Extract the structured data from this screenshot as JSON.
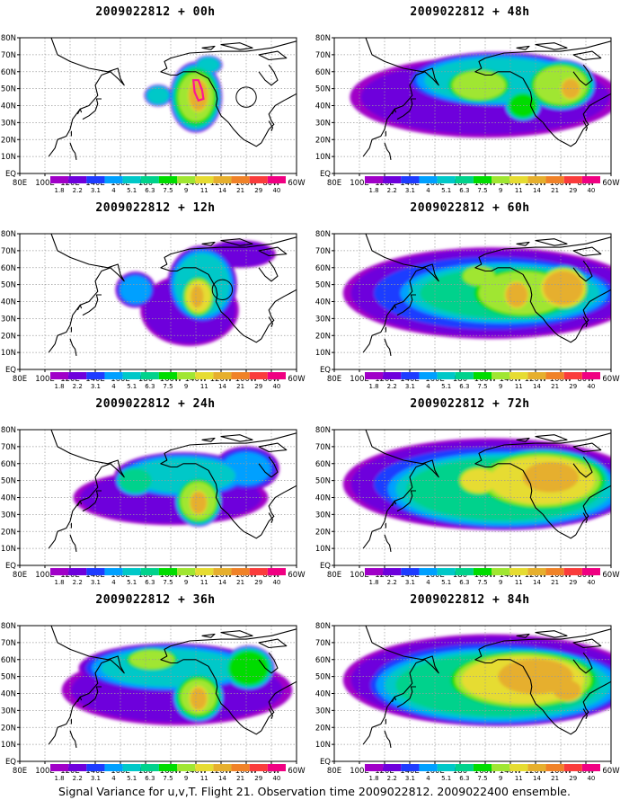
{
  "figure": {
    "caption": "Signal Variance for u,v,T. Flight 21. Observation time 2009022812. 2009022400 ensemble."
  },
  "colors": {
    "levels": [
      "#a000c8",
      "#6e00dc",
      "#1e3cff",
      "#00a0ff",
      "#00c8c8",
      "#00d28c",
      "#00dc00",
      "#a0e632",
      "#e6dc32",
      "#e6af2d",
      "#f08228",
      "#fa3c3c",
      "#f00082"
    ],
    "land_outline": "#000000",
    "grid": "#9a9a9a",
    "flight_track": "#ff1493"
  },
  "chart_data": {
    "type": "heatmap",
    "levels": [
      "1.8",
      "2.2",
      "3.1",
      "4",
      "5.1",
      "6.3",
      "7.5",
      "9",
      "11",
      "14",
      "21",
      "29",
      "40"
    ],
    "x_ticks": [
      "80E",
      "100E",
      "120E",
      "140E",
      "160E",
      "180",
      "160W",
      "140W",
      "120W",
      "100W",
      "80W",
      "60W"
    ],
    "y_ticks": [
      "EQ",
      "10N",
      "20N",
      "30N",
      "40N",
      "50N",
      "60N",
      "70N",
      "80N"
    ],
    "panels": [
      {
        "id": "00h",
        "title": "2009022812 + 00h",
        "lead_hours": 0
      },
      {
        "id": "48h",
        "title": "2009022812 + 48h",
        "lead_hours": 48
      },
      {
        "id": "12h",
        "title": "2009022812 + 12h",
        "lead_hours": 12
      },
      {
        "id": "60h",
        "title": "2009022812 + 60h",
        "lead_hours": 60
      },
      {
        "id": "24h",
        "title": "2009022812 + 24h",
        "lead_hours": 24
      },
      {
        "id": "72h",
        "title": "2009022812 + 72h",
        "lead_hours": 72
      },
      {
        "id": "36h",
        "title": "2009022812 + 36h",
        "lead_hours": 36
      },
      {
        "id": "84h",
        "title": "2009022812 + 84h",
        "lead_hours": 84
      }
    ],
    "blobs": {
      "00h": [
        {
          "lon": 220,
          "lat": 45,
          "rx": 22,
          "ry": 22,
          "v": 9
        },
        {
          "lon": 222,
          "lat": 46,
          "rx": 10,
          "ry": 12,
          "v": 17
        },
        {
          "lon": 190,
          "lat": 46,
          "rx": 12,
          "ry": 7,
          "v": 6
        },
        {
          "lon": 230,
          "lat": 64,
          "rx": 12,
          "ry": 6,
          "v": 6
        }
      ],
      "12h": [
        {
          "lon": 215,
          "lat": 35,
          "rx": 48,
          "ry": 26,
          "v": 2.8
        },
        {
          "lon": 225,
          "lat": 50,
          "rx": 30,
          "ry": 25,
          "v": 6
        },
        {
          "lon": 222,
          "lat": 43,
          "rx": 15,
          "ry": 14,
          "v": 11
        },
        {
          "lon": 221,
          "lat": 43,
          "rx": 7,
          "ry": 9,
          "v": 16
        },
        {
          "lon": 172,
          "lat": 47,
          "rx": 18,
          "ry": 12,
          "v": 4.3
        },
        {
          "lon": 255,
          "lat": 68,
          "rx": 35,
          "ry": 10,
          "v": 2.8
        }
      ],
      "24h": [
        {
          "lon": 200,
          "lat": 40,
          "rx": 95,
          "ry": 20,
          "v": 2.8
        },
        {
          "lon": 210,
          "lat": 53,
          "rx": 60,
          "ry": 15,
          "v": 5.5
        },
        {
          "lon": 222,
          "lat": 38,
          "rx": 20,
          "ry": 16,
          "v": 10
        },
        {
          "lon": 222,
          "lat": 37,
          "rx": 9,
          "ry": 9,
          "v": 16
        },
        {
          "lon": 172,
          "lat": 50,
          "rx": 18,
          "ry": 10,
          "v": 7
        },
        {
          "lon": 260,
          "lat": 57,
          "rx": 30,
          "ry": 15,
          "v": 4
        }
      ],
      "36h": [
        {
          "lon": 205,
          "lat": 42,
          "rx": 115,
          "ry": 26,
          "v": 2.6
        },
        {
          "lon": 200,
          "lat": 55,
          "rx": 80,
          "ry": 16,
          "v": 5.5
        },
        {
          "lon": 185,
          "lat": 60,
          "rx": 25,
          "ry": 8,
          "v": 10
        },
        {
          "lon": 222,
          "lat": 38,
          "rx": 22,
          "ry": 16,
          "v": 9
        },
        {
          "lon": 222,
          "lat": 37,
          "rx": 10,
          "ry": 10,
          "v": 14
        },
        {
          "lon": 262,
          "lat": 55,
          "rx": 22,
          "ry": 14,
          "v": 8.5
        }
      ],
      "48h": [
        {
          "lon": 200,
          "lat": 45,
          "rx": 135,
          "ry": 30,
          "v": 2.6
        },
        {
          "lon": 210,
          "lat": 55,
          "rx": 80,
          "ry": 18,
          "v": 6
        },
        {
          "lon": 195,
          "lat": 52,
          "rx": 30,
          "ry": 12,
          "v": 10
        },
        {
          "lon": 260,
          "lat": 52,
          "rx": 30,
          "ry": 16,
          "v": 10
        },
        {
          "lon": 268,
          "lat": 50,
          "rx": 10,
          "ry": 8,
          "v": 16
        },
        {
          "lon": 230,
          "lat": 40,
          "rx": 16,
          "ry": 10,
          "v": 8
        }
      ],
      "60h": [
        {
          "lon": 205,
          "lat": 45,
          "rx": 140,
          "ry": 32,
          "v": 3.2
        },
        {
          "lon": 215,
          "lat": 45,
          "rx": 100,
          "ry": 22,
          "v": 6.5
        },
        {
          "lon": 230,
          "lat": 45,
          "rx": 50,
          "ry": 18,
          "v": 10
        },
        {
          "lon": 225,
          "lat": 44,
          "rx": 12,
          "ry": 10,
          "v": 16
        },
        {
          "lon": 262,
          "lat": 48,
          "rx": 22,
          "ry": 14,
          "v": 16
        },
        {
          "lon": 195,
          "lat": 55,
          "rx": 18,
          "ry": 8,
          "v": 10
        }
      ],
      "72h": [
        {
          "lon": 205,
          "lat": 48,
          "rx": 140,
          "ry": 32,
          "v": 3.2
        },
        {
          "lon": 215,
          "lat": 45,
          "rx": 110,
          "ry": 26,
          "v": 7
        },
        {
          "lon": 245,
          "lat": 50,
          "rx": 60,
          "ry": 20,
          "v": 12
        },
        {
          "lon": 252,
          "lat": 52,
          "rx": 30,
          "ry": 12,
          "v": 17
        },
        {
          "lon": 195,
          "lat": 50,
          "rx": 20,
          "ry": 10,
          "v": 12
        }
      ],
      "84h": [
        {
          "lon": 205,
          "lat": 48,
          "rx": 140,
          "ry": 32,
          "v": 3.2
        },
        {
          "lon": 210,
          "lat": 45,
          "rx": 115,
          "ry": 26,
          "v": 7
        },
        {
          "lon": 230,
          "lat": 48,
          "rx": 70,
          "ry": 20,
          "v": 12
        },
        {
          "lon": 240,
          "lat": 50,
          "rx": 40,
          "ry": 14,
          "v": 17
        },
        {
          "lon": 265,
          "lat": 42,
          "rx": 15,
          "ry": 8,
          "v": 17
        }
      ]
    },
    "annotations": {
      "00h": {
        "track": [
          [
            218,
            55
          ],
          [
            222,
            55
          ],
          [
            225,
            49
          ],
          [
            226,
            44
          ],
          [
            222,
            43
          ],
          [
            219,
            48
          ]
        ],
        "circles": [
          [
            260,
            45,
            8
          ]
        ]
      },
      "12h": {
        "circles": [
          [
            241,
            47,
            8
          ]
        ]
      }
    }
  }
}
